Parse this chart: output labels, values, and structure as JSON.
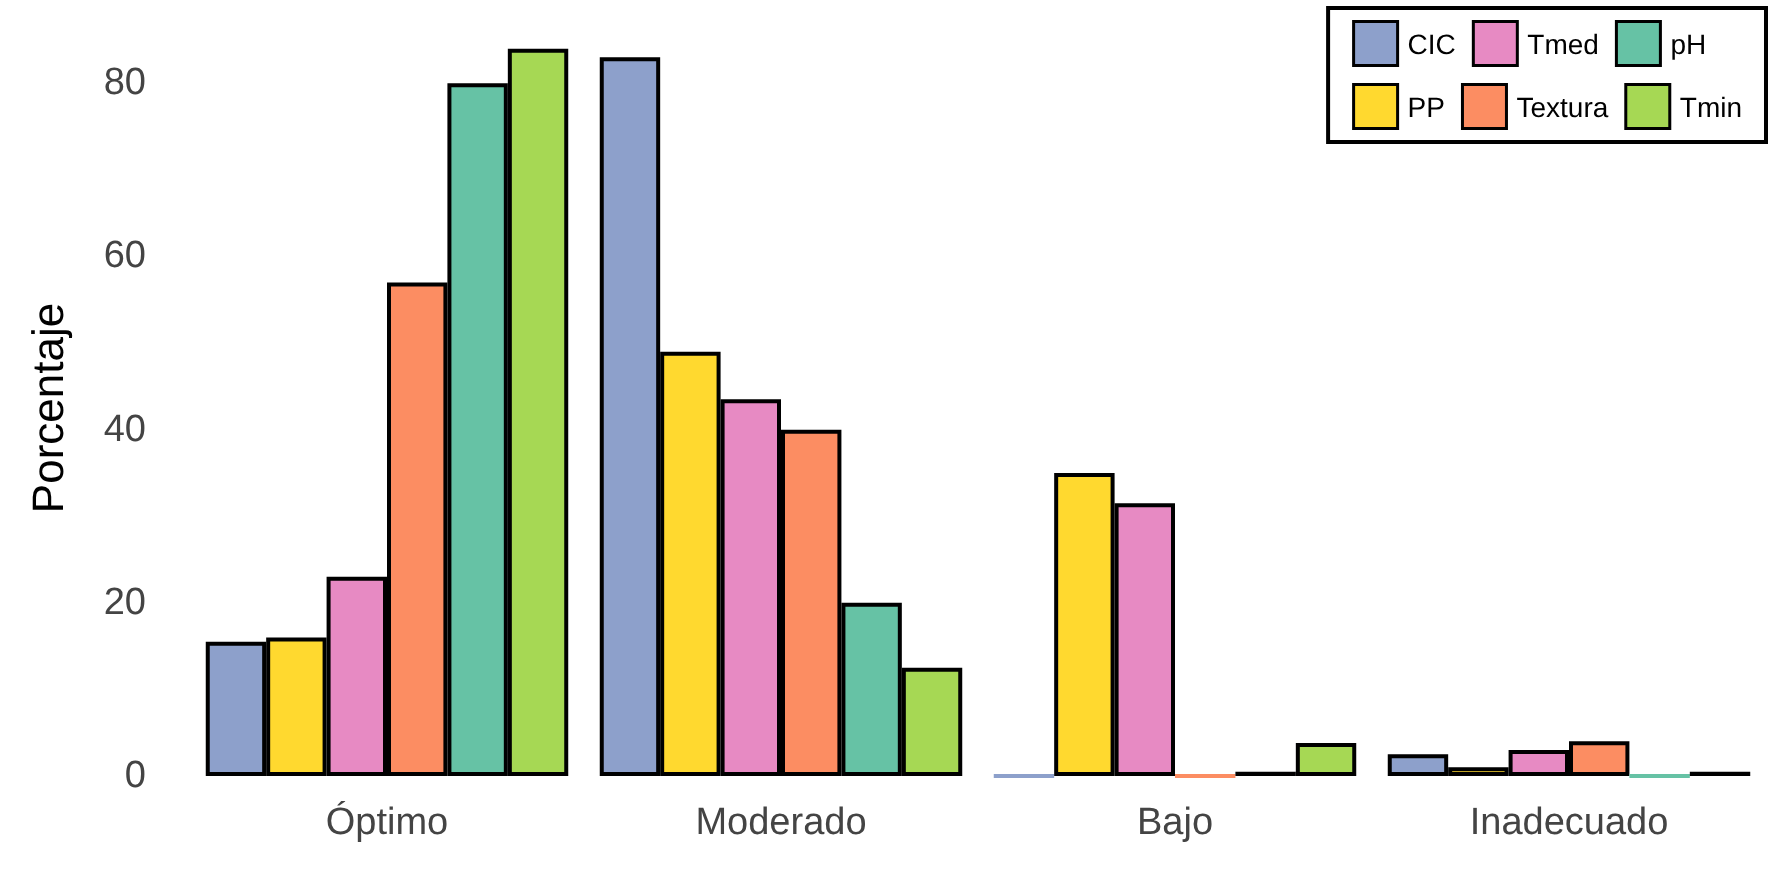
{
  "chart_data": {
    "type": "bar",
    "ylabel": "Porcentaje",
    "categories": [
      "Óptimo",
      "Moderado",
      "Bajo",
      "Inadecuado"
    ],
    "series": [
      {
        "name": "CIC",
        "color": "#8da0cb",
        "values": [
          15.5,
          83,
          0,
          2.5
        ]
      },
      {
        "name": "PP",
        "color": "#ffd92f",
        "values": [
          16,
          49,
          35,
          1
        ]
      },
      {
        "name": "Tmed",
        "color": "#e78ac3",
        "values": [
          23,
          43.5,
          31.5,
          3
        ]
      },
      {
        "name": "Textura",
        "color": "#fc8d62",
        "values": [
          57,
          40,
          0,
          4
        ]
      },
      {
        "name": "pH",
        "color": "#66c2a5",
        "values": [
          80,
          20,
          0.5,
          0
        ]
      },
      {
        "name": "Tmin",
        "color": "#a6d854",
        "values": [
          84,
          12.5,
          3.8,
          0.5
        ]
      }
    ],
    "ylim": [
      0,
      85
    ],
    "yticks": [
      0,
      20,
      40,
      60,
      80
    ],
    "grid": false,
    "legend": "top right"
  }
}
